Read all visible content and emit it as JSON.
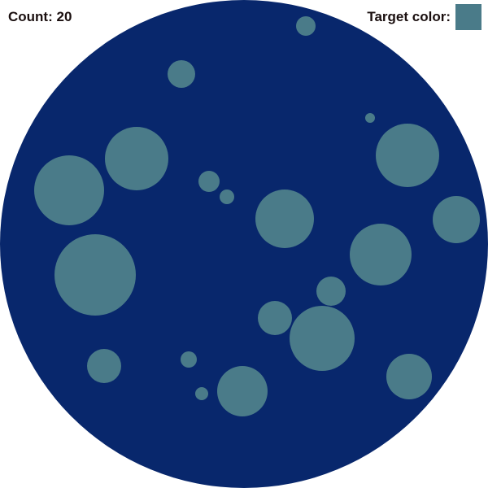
{
  "hud": {
    "count_label": "Count:",
    "count_value": "20",
    "target_label": "Target color:"
  },
  "colors": {
    "board": "#08276c",
    "target": "#4a7b89",
    "background": "#ffffff",
    "text": "#1a0f0f"
  },
  "icons": {
    "board": "circular-board",
    "dot": "circle-dot",
    "swatch": "color-swatch"
  }
}
